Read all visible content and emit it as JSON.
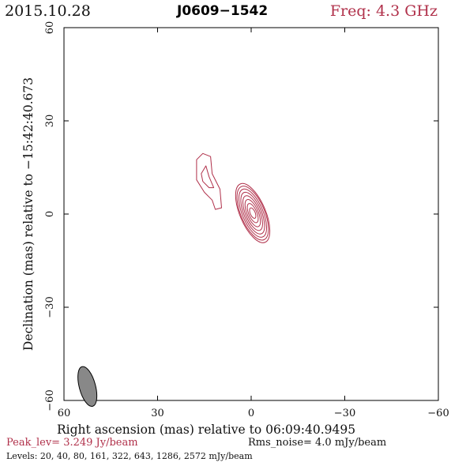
{
  "header": {
    "date": "2015.10.28",
    "source": "J0609−1542",
    "freq": "Freq: 4.3 GHz"
  },
  "footer": {
    "peak": "Peak_lev=  3.249 Jy/beam",
    "rms": "Rms_noise=  4.0 mJy/beam",
    "levels": "Levels:  20,  40,  80, 161, 322, 643, 1286, 2572 mJy/beam"
  },
  "colors": {
    "contour": "#b0304a",
    "beam": "#888888",
    "title_accent": "#b0304a"
  },
  "chart_data": {
    "type": "contour",
    "xlabel": "Right ascension (mas) relative to 06:09:40.9495",
    "ylabel": "Declination (mas) relative to −15:42:40.673",
    "xlim": [
      60,
      -60
    ],
    "ylim": [
      -60,
      60
    ],
    "x_ticks": [
      60,
      30,
      0,
      -30,
      -60
    ],
    "y_ticks": [
      -60,
      -30,
      0,
      30,
      60
    ],
    "x_tick_labels": [
      "60",
      "30",
      "0",
      "−30",
      "−60"
    ],
    "y_tick_labels": [
      "−60",
      "−30",
      "0",
      "30",
      "60"
    ],
    "beam": {
      "ra": 52.5,
      "dec": -55.5,
      "major": 6.6,
      "minor": 2.6,
      "pa": -15
    },
    "components": [
      {
        "name": "core",
        "ra": -0.5,
        "dec": 0.3,
        "levels": [
          {
            "major": 10.2,
            "minor": 4.1,
            "pa": 157
          },
          {
            "major": 9.3,
            "minor": 3.8,
            "pa": 157
          },
          {
            "major": 8.3,
            "minor": 3.3,
            "pa": 157
          },
          {
            "major": 7.2,
            "minor": 2.8,
            "pa": 157
          },
          {
            "major": 6.0,
            "minor": 2.3,
            "pa": 157
          },
          {
            "major": 4.7,
            "minor": 1.8,
            "pa": 157
          },
          {
            "major": 3.3,
            "minor": 1.3,
            "pa": 157
          },
          {
            "major": 1.8,
            "minor": 0.8,
            "pa": 157
          }
        ]
      },
      {
        "name": "jet",
        "levels": [
          {
            "points": [
              [
                17.5,
                17.5
              ],
              [
                15.5,
                19.5
              ],
              [
                13,
                18.5
              ],
              [
                12.5,
                13
              ],
              [
                10,
                8
              ],
              [
                9.5,
                2
              ],
              [
                11.5,
                1.5
              ],
              [
                12.5,
                4.5
              ],
              [
                15,
                7
              ],
              [
                17.5,
                11
              ]
            ]
          },
          {
            "points": [
              [
                16,
                13
              ],
              [
                14.5,
                15.5
              ],
              [
                13.5,
                12
              ],
              [
                12,
                8.5
              ],
              [
                13.5,
                8.5
              ],
              [
                15.5,
                10.5
              ]
            ]
          }
        ]
      }
    ],
    "peak_lev": "3.249 Jy/beam",
    "rms_noise": "4.0 mJy/beam",
    "levels_mjy": [
      20,
      40,
      80,
      161,
      322,
      643,
      1286,
      2572
    ]
  }
}
